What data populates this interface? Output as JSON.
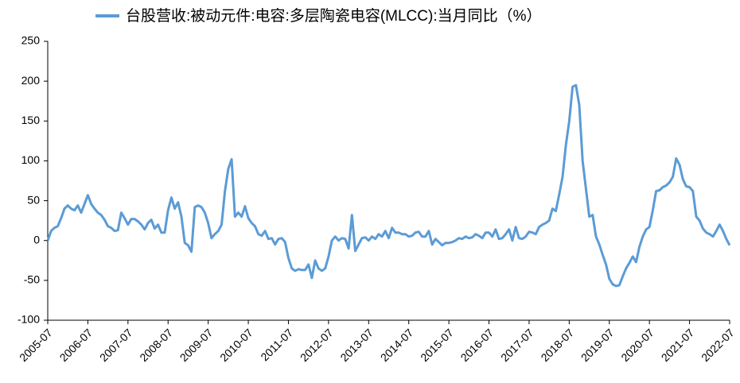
{
  "chart_data": {
    "type": "line",
    "categories": [
      "2005-07",
      null,
      null,
      null,
      null,
      null,
      null,
      null,
      null,
      null,
      null,
      null,
      "2006-07",
      null,
      null,
      null,
      null,
      null,
      null,
      null,
      null,
      null,
      null,
      null,
      "2007-07",
      null,
      null,
      null,
      null,
      null,
      null,
      null,
      null,
      null,
      null,
      null,
      "2008-07",
      null,
      null,
      null,
      null,
      null,
      null,
      null,
      null,
      null,
      null,
      null,
      "2009-07",
      null,
      null,
      null,
      null,
      null,
      null,
      null,
      null,
      null,
      null,
      null,
      "2010-07",
      null,
      null,
      null,
      null,
      null,
      null,
      null,
      null,
      null,
      null,
      null,
      "2011-07",
      null,
      null,
      null,
      null,
      null,
      null,
      null,
      null,
      null,
      null,
      null,
      "2012-07",
      null,
      null,
      null,
      null,
      null,
      null,
      null,
      null,
      null,
      null,
      null,
      "2013-07",
      null,
      null,
      null,
      null,
      null,
      null,
      null,
      null,
      null,
      null,
      null,
      "2014-07",
      null,
      null,
      null,
      null,
      null,
      null,
      null,
      null,
      null,
      null,
      null,
      "2015-07",
      null,
      null,
      null,
      null,
      null,
      null,
      null,
      null,
      null,
      null,
      null,
      "2016-07",
      null,
      null,
      null,
      null,
      null,
      null,
      null,
      null,
      null,
      null,
      null,
      "2017-07",
      null,
      null,
      null,
      null,
      null,
      null,
      null,
      null,
      null,
      null,
      null,
      "2018-07",
      null,
      null,
      null,
      null,
      null,
      null,
      null,
      null,
      null,
      null,
      null,
      "2019-07",
      null,
      null,
      null,
      null,
      null,
      null,
      null,
      null,
      null,
      null,
      null,
      "2020-07",
      null,
      null,
      null,
      null,
      null,
      null,
      null,
      null,
      null,
      null,
      null,
      "2021-07",
      null,
      null,
      null,
      null,
      null,
      null,
      null,
      null,
      null,
      null,
      null,
      "2022-07"
    ],
    "series": [
      {
        "name": "台股营收:被动元件:电容:多层陶瓷电容(MLCC):当月同比（%）",
        "color": "#5b9bd5",
        "values": [
          0,
          12,
          16,
          18,
          28,
          40,
          44,
          40,
          38,
          44,
          35,
          46,
          57,
          46,
          40,
          35,
          32,
          26,
          18,
          16,
          12,
          13,
          35,
          28,
          20,
          27,
          27,
          24,
          20,
          14,
          22,
          26,
          15,
          20,
          10,
          10,
          38,
          54,
          40,
          48,
          30,
          -3,
          -6,
          -14,
          42,
          44,
          42,
          35,
          22,
          3,
          8,
          12,
          20,
          62,
          90,
          102,
          30,
          35,
          30,
          43,
          28,
          22,
          18,
          8,
          6,
          12,
          2,
          3,
          -5,
          2,
          3,
          -2,
          -22,
          -35,
          -38,
          -36,
          -37,
          -37,
          -30,
          -47,
          -25,
          -35,
          -38,
          -35,
          -20,
          0,
          5,
          0,
          3,
          2,
          -10,
          32,
          -13,
          -5,
          3,
          4,
          0,
          5,
          2,
          8,
          5,
          12,
          3,
          16,
          10,
          10,
          8,
          8,
          5,
          6,
          10,
          11,
          5,
          5,
          12,
          -5,
          2,
          -2,
          -6,
          -3,
          -3,
          -2,
          0,
          3,
          2,
          5,
          3,
          4,
          8,
          6,
          3,
          10,
          10,
          5,
          14,
          2,
          3,
          8,
          14,
          0,
          17,
          3,
          2,
          5,
          11,
          10,
          8,
          17,
          20,
          22,
          25,
          40,
          37,
          58,
          80,
          120,
          150,
          193,
          195,
          170,
          100,
          65,
          30,
          32,
          5,
          -5,
          -18,
          -30,
          -48,
          -55,
          -57,
          -56,
          -45,
          -35,
          -28,
          -20,
          -27,
          -8,
          5,
          14,
          17,
          38,
          62,
          63,
          67,
          69,
          73,
          80,
          103,
          95,
          77,
          68,
          67,
          62,
          30,
          25,
          15,
          10,
          8,
          5,
          12,
          20,
          12,
          2,
          -6
        ]
      }
    ],
    "ylim": [
      -100,
      250
    ],
    "yticks": [
      -100,
      -50,
      0,
      50,
      100,
      150,
      200,
      250
    ],
    "grid": false
  }
}
